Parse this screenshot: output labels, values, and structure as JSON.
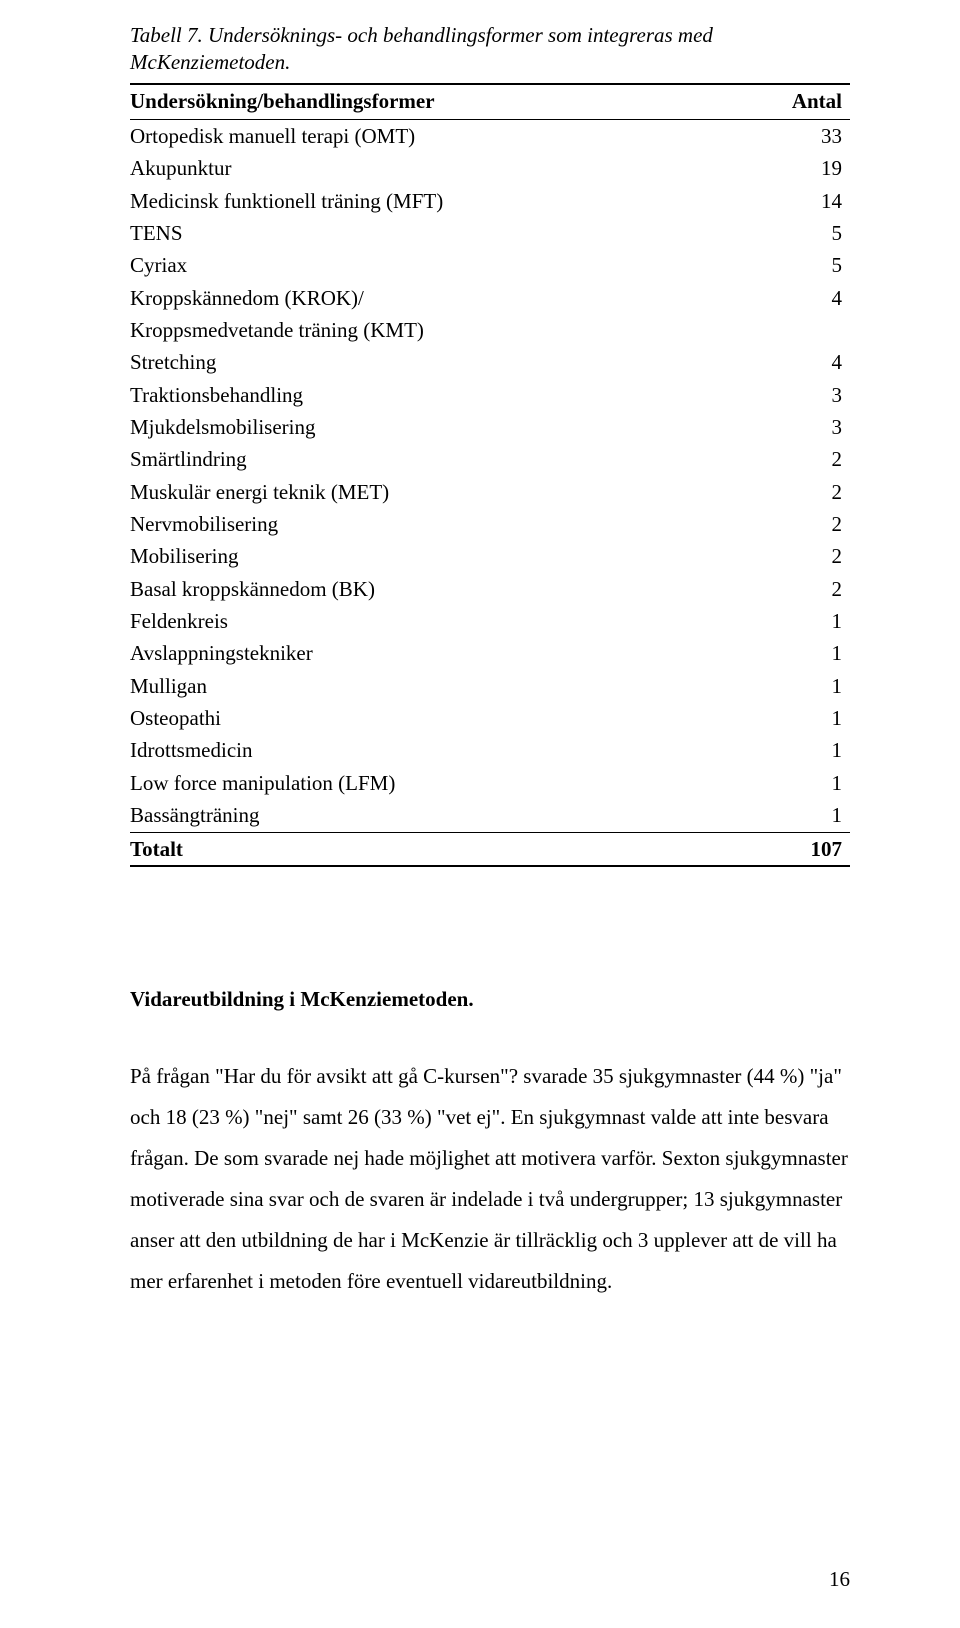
{
  "table": {
    "caption": "Tabell 7. Undersöknings- och behandlingsformer som integreras med McKenziemetoden.",
    "header": {
      "col1": "Undersökning/behandlingsformer",
      "col2": "Antal"
    },
    "rows": [
      {
        "label": "Ortopedisk manuell terapi (OMT)",
        "value": "33"
      },
      {
        "label": "Akupunktur",
        "value": "19"
      },
      {
        "label": "Medicinsk funktionell träning (MFT)",
        "value": "14"
      },
      {
        "label": "TENS",
        "value": "5"
      },
      {
        "label": "Cyriax",
        "value": "5"
      },
      {
        "label": "Kroppskännedom (KROK)/",
        "value": "4"
      },
      {
        "label": "Kroppsmedvetande träning (KMT)",
        "value": ""
      },
      {
        "label": "Stretching",
        "value": "4"
      },
      {
        "label": "Traktionsbehandling",
        "value": "3"
      },
      {
        "label": "Mjukdelsmobilisering",
        "value": "3"
      },
      {
        "label": "Smärtlindring",
        "value": "2"
      },
      {
        "label": "Muskulär energi teknik (MET)",
        "value": "2"
      },
      {
        "label": "Nervmobilisering",
        "value": "2"
      },
      {
        "label": "Mobilisering",
        "value": "2"
      },
      {
        "label": "Basal kroppskännedom (BK)",
        "value": "2"
      },
      {
        "label": "Feldenkreis",
        "value": "1"
      },
      {
        "label": "Avslappningstekniker",
        "value": "1"
      },
      {
        "label": "Mulligan",
        "value": "1"
      },
      {
        "label": "Osteopathi",
        "value": "1"
      },
      {
        "label": "Idrottsmedicin",
        "value": "1"
      },
      {
        "label": "Low force manipulation (LFM)",
        "value": "1"
      },
      {
        "label": "Bassängträning",
        "value": "1"
      }
    ],
    "total": {
      "label": "Totalt",
      "value": "107"
    }
  },
  "section": {
    "heading": "Vidareutbildning i McKenziemetoden.",
    "body": "På frågan \"Har du för avsikt att gå C-kursen\"? svarade 35 sjukgymnaster (44 %) \"ja\" och 18 (23 %) \"nej\" samt 26 (33 %) \"vet ej\". En sjukgymnast valde att inte besvara frågan. De som svarade nej hade möjlighet att motivera varför. Sexton sjukgymnaster motiverade sina svar och de svaren är indelade i två undergrupper; 13 sjukgymnaster anser att den utbildning de har i McKenzie är tillräcklig och 3 upplever att de vill ha mer erfarenhet i metoden före eventuell vidareutbildning."
  },
  "page_number": "16"
}
